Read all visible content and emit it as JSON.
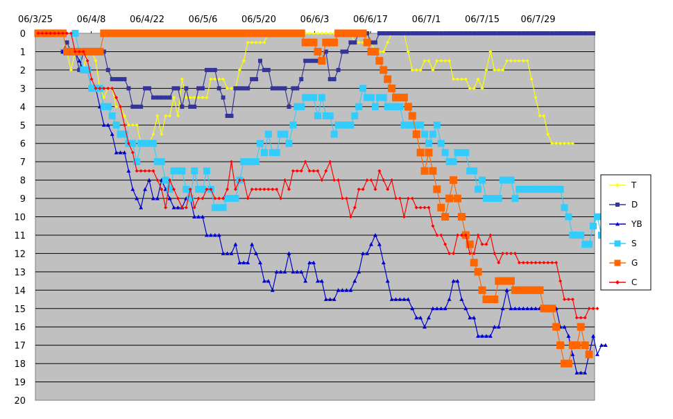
{
  "chart_data": {
    "type": "line",
    "x_labels": [
      "06/3/25",
      "06/4/8",
      "06/4/22",
      "06/5/6",
      "06/5/20",
      "06/6/3",
      "06/6/17",
      "06/7/1",
      "06/7/15",
      "06/7/29"
    ],
    "y_ticks": [
      "0",
      "1",
      "2",
      "3",
      "4",
      "5",
      "6",
      "7",
      "8",
      "9",
      "10",
      "11",
      "12",
      "13",
      "14",
      "15",
      "16",
      "17",
      "18",
      "19",
      "20"
    ],
    "ylim": [
      0,
      20
    ],
    "y_inverted": true,
    "x_count": 136,
    "grid": "horizontal",
    "legend_position": "right",
    "series": [
      {
        "name": "T",
        "color": "#ffff00",
        "marker": "diamond",
        "start": 0,
        "values": [
          0,
          0,
          0,
          0,
          0,
          0,
          0,
          1,
          2,
          1,
          1,
          2,
          1,
          1,
          1.5,
          3,
          3.5,
          3,
          3,
          4,
          4,
          4.5,
          5,
          5,
          5,
          6,
          6,
          6,
          5.5,
          4.5,
          5.5,
          4.5,
          4.5,
          3.5,
          4.5,
          2.5,
          3.5,
          3.5,
          3.5,
          3.5,
          3.5,
          3.5,
          2.5,
          2.5,
          2.5,
          2.5,
          3,
          3,
          3,
          2,
          1.5,
          0.5,
          0.5,
          0.5,
          0.5,
          0.5,
          0,
          0,
          0,
          0,
          0,
          0,
          0,
          0,
          0,
          0,
          0,
          0,
          0,
          0,
          0,
          0,
          0,
          0,
          0,
          0,
          0,
          0.5,
          0.5,
          0.5,
          0,
          0.5,
          1,
          1,
          1,
          0.5,
          0,
          0,
          0,
          0,
          1,
          2,
          2,
          2,
          1.5,
          1.5,
          2,
          1.5,
          1.5,
          1.5,
          1.5,
          2.5,
          2.5,
          2.5,
          2.5,
          3,
          3,
          2.5,
          3,
          2,
          1,
          2,
          2,
          2,
          1.5,
          1.5,
          1.5,
          1.5,
          1.5,
          1.5,
          2.5,
          3.5,
          4.5,
          4.5,
          5.5,
          6,
          6,
          6,
          6,
          6,
          6
        ]
      },
      {
        "name": "D",
        "color": "#333399",
        "marker": "square",
        "start": 6,
        "values": [
          1,
          0.5,
          1,
          1,
          2,
          1,
          1,
          1,
          1,
          1,
          1,
          2,
          2.5,
          2.5,
          2.5,
          2.5,
          3,
          4,
          4,
          4,
          3,
          3,
          3.5,
          3.5,
          3.5,
          3.5,
          3.5,
          3,
          3,
          4,
          3,
          4,
          4,
          3,
          3,
          2,
          2,
          2,
          3,
          3.5,
          4.5,
          4.5,
          3,
          3,
          3,
          3,
          2.5,
          2.5,
          1.5,
          2,
          2,
          3,
          3,
          3,
          3,
          4,
          3,
          3,
          2.5,
          1.5,
          1.5,
          1.5,
          1.5,
          1.5,
          1,
          2.5,
          2.5,
          2,
          1,
          1,
          0.5,
          0.5,
          0,
          0,
          0,
          0.5,
          0.5,
          0,
          0,
          0,
          0,
          0,
          0,
          0,
          0,
          0,
          0,
          0,
          0,
          0,
          0,
          0,
          0,
          0,
          0,
          0,
          0,
          0,
          0,
          0,
          0,
          0,
          0,
          0,
          0,
          0,
          0,
          0,
          0,
          0,
          0,
          0,
          0,
          0,
          0,
          0,
          0,
          0,
          0,
          0,
          0,
          0,
          0,
          0,
          0,
          0,
          0,
          0,
          0,
          0
        ]
      },
      {
        "name": "YB",
        "color": "#0000cc",
        "marker": "triangle",
        "start": 6,
        "values": [
          1,
          1,
          1,
          1,
          1.5,
          2,
          2,
          3,
          3,
          4,
          5,
          5,
          5.5,
          6.5,
          6.5,
          6.5,
          7.5,
          8.5,
          9,
          9.5,
          8.5,
          8,
          9,
          9,
          8,
          8.5,
          9,
          9.5,
          9.5,
          9.5,
          9,
          9,
          10,
          10,
          10,
          11,
          11,
          11,
          11,
          12,
          12,
          12,
          11.5,
          12.5,
          12.5,
          12.5,
          11.5,
          12,
          12.5,
          13.5,
          13.5,
          14,
          13,
          13,
          13,
          12,
          13,
          13,
          13,
          13.5,
          12.5,
          12.5,
          13.5,
          13.5,
          14.5,
          14.5,
          14.5,
          14,
          14,
          14,
          14,
          13.5,
          13,
          12,
          12,
          11.5,
          11,
          11.5,
          12.5,
          13.5,
          14.5,
          14.5,
          14.5,
          14.5,
          14.5,
          15,
          15.5,
          15.5,
          16,
          15.5,
          15,
          15,
          15,
          15,
          14.5,
          13.5,
          13.5,
          14.5,
          15,
          15.5,
          15.5,
          16.5,
          16.5,
          16.5,
          16.5,
          16,
          16,
          15,
          14,
          15,
          15,
          15,
          15,
          15,
          15,
          15,
          15,
          15,
          15,
          15,
          15,
          16,
          16,
          16.5,
          17.5,
          18.5,
          18.5,
          18.5,
          17.5,
          16.5,
          17.5,
          17,
          17
        ]
      },
      {
        "name": "S",
        "color": "#33ccff",
        "marker": "square",
        "start": 9,
        "values": [
          0,
          1,
          2,
          2,
          3,
          3,
          3,
          4,
          4,
          4.5,
          5,
          5.5,
          5.5,
          6,
          6,
          7,
          6,
          6,
          6,
          6,
          7,
          7,
          8,
          8.5,
          7.5,
          7.5,
          7.5,
          8.5,
          9,
          7.5,
          8.5,
          8.5,
          7.5,
          8.5,
          9.5,
          9.5,
          9.5,
          9,
          9,
          9,
          8,
          7,
          7,
          7,
          7,
          6,
          6.5,
          5.5,
          6.5,
          6.5,
          5.5,
          5.5,
          6,
          5,
          4,
          4,
          3.5,
          3.5,
          3.5,
          4.5,
          3.5,
          4.5,
          4.5,
          5.5,
          5,
          5,
          5,
          5,
          4.5,
          4,
          3,
          3.5,
          3.5,
          4,
          3.5,
          3.5,
          4,
          4,
          4,
          4,
          5,
          5,
          5,
          5,
          5,
          5.5,
          6,
          5.5,
          5,
          6,
          6.5,
          7,
          7,
          6.5,
          6.5,
          6.5,
          7.5,
          7.5,
          8.5,
          8,
          9,
          9,
          9,
          9,
          8,
          8,
          8,
          9,
          8.5,
          8.5,
          8.5,
          8.5,
          8.5,
          8.5,
          8.5,
          8.5,
          8.5,
          8.5,
          8.5,
          9.5,
          10,
          11,
          11,
          11,
          11.5,
          11.5,
          10.5,
          10,
          11,
          11
        ]
      },
      {
        "name": "G",
        "color": "#ff6600",
        "marker": "square",
        "start": 0,
        "values": [
          0,
          0,
          0,
          0,
          0,
          0,
          0,
          1,
          1,
          1,
          1,
          1,
          1,
          1,
          1,
          1,
          0,
          0,
          0,
          0,
          0,
          0,
          0,
          0,
          0,
          0,
          0,
          0,
          0,
          0,
          0,
          0,
          0,
          0,
          0,
          0,
          0,
          0,
          0,
          0,
          0,
          0,
          0,
          0,
          0,
          0,
          0,
          0,
          0,
          0,
          0,
          0,
          0,
          0,
          0,
          0,
          0,
          0,
          0,
          0,
          0,
          0,
          0,
          0,
          0,
          0.5,
          0.5,
          0.5,
          1,
          1.5,
          0.5,
          0.5,
          0.5,
          0,
          0,
          0,
          0,
          0,
          0,
          0,
          0.5,
          1,
          1,
          1.5,
          2,
          2.5,
          3,
          3.5,
          3.5,
          3.5,
          4,
          4.5,
          5.5,
          6.5,
          7.5,
          6.5,
          7.5,
          8.5,
          9.5,
          10,
          9,
          8,
          9,
          10,
          11,
          11.5,
          12.5,
          13,
          14,
          14.5,
          14.5,
          14.5,
          13.5,
          13.5,
          13.5,
          13.5,
          14,
          14,
          14,
          14,
          14,
          14,
          14,
          15,
          15,
          15,
          16,
          17,
          18,
          18,
          17,
          17,
          16,
          17,
          17.5
        ]
      },
      {
        "name": "C",
        "color": "#ff0000",
        "marker": "diamond",
        "start": 0,
        "values": [
          0,
          0,
          0,
          0,
          0,
          0,
          0,
          0,
          0,
          1,
          1,
          1,
          1.5,
          2.5,
          3,
          3,
          3,
          3,
          3,
          3.5,
          4,
          5,
          6,
          6.5,
          7.5,
          7.5,
          7.5,
          7.5,
          7.5,
          8,
          8.5,
          9.5,
          8,
          8.5,
          9,
          9.5,
          9.5,
          8.5,
          9.5,
          9,
          9,
          8.5,
          8.5,
          9,
          9,
          9,
          8.5,
          7,
          8.5,
          8,
          8,
          9,
          8.5,
          8.5,
          8.5,
          8.5,
          8.5,
          8.5,
          8.5,
          9,
          8,
          8.5,
          7.5,
          7.5,
          7.5,
          7,
          7.5,
          7.5,
          7.5,
          8,
          7.5,
          7,
          8,
          8,
          9,
          9,
          10,
          9.5,
          8.5,
          8.5,
          8,
          8,
          8.5,
          7.5,
          8,
          8.5,
          8,
          9,
          9,
          10,
          9,
          9,
          9.5,
          9.5,
          9.5,
          9.5,
          10.5,
          11,
          11,
          11.5,
          12,
          12,
          11,
          11,
          11,
          12,
          12,
          11,
          11.5,
          11.5,
          11,
          12,
          12.5,
          12,
          12,
          12,
          12,
          12.5,
          12.5,
          12.5,
          12.5,
          12.5,
          12.5,
          12.5,
          12.5,
          12.5,
          12.5,
          13.5,
          14.5,
          14.5,
          14.5,
          15.5,
          15.5,
          15.5,
          15,
          15,
          15
        ]
      }
    ]
  }
}
